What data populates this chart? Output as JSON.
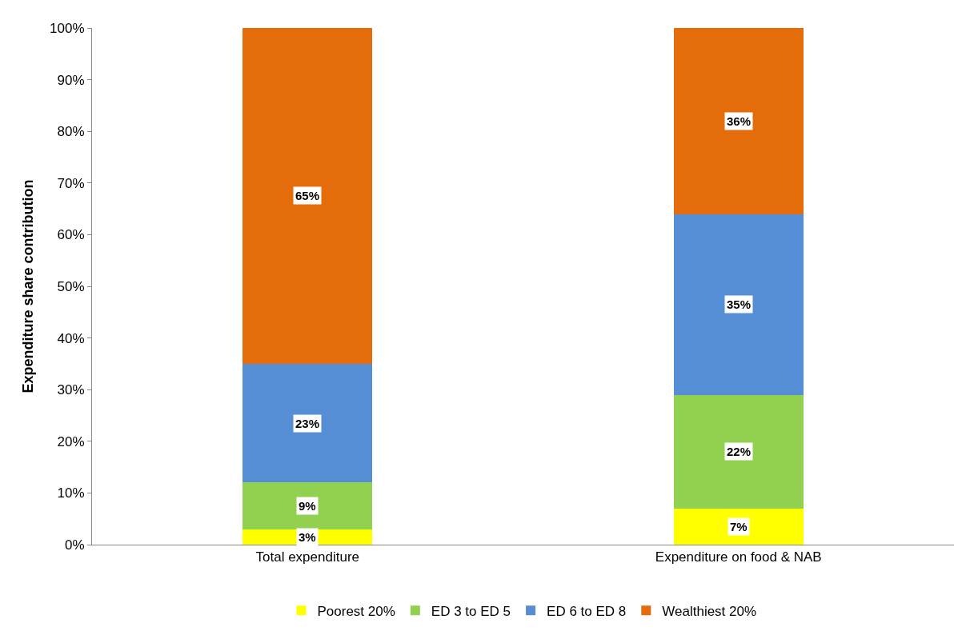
{
  "chart_data": {
    "type": "bar",
    "stacked": true,
    "ylabel": "Expenditure share contribution",
    "categories": [
      "Total expenditure",
      "Expenditure on food & NAB"
    ],
    "series": [
      {
        "name": "Poorest 20%",
        "color": "#ffff00",
        "values": [
          3,
          7
        ],
        "value_labels": [
          "3%",
          "7%"
        ]
      },
      {
        "name": "ED 3 to ED 5",
        "color": "#92d050",
        "values": [
          9,
          22
        ],
        "value_labels": [
          "9%",
          "22%"
        ]
      },
      {
        "name": "ED 6 to ED 8",
        "color": "#558ed5",
        "values": [
          23,
          35
        ],
        "value_labels": [
          "23%",
          "35%"
        ]
      },
      {
        "name": "Wealthiest 20%",
        "color": "#e46c0a",
        "values": [
          65,
          36
        ],
        "value_labels": [
          "65%",
          "36%"
        ]
      }
    ],
    "ylim": [
      0,
      100
    ],
    "yticks": [
      {
        "value": 0,
        "label": "0%"
      },
      {
        "value": 10,
        "label": "10%"
      },
      {
        "value": 20,
        "label": "20%"
      },
      {
        "value": 30,
        "label": "30%"
      },
      {
        "value": 40,
        "label": "40%"
      },
      {
        "value": 50,
        "label": "50%"
      },
      {
        "value": 60,
        "label": "60%"
      },
      {
        "value": 70,
        "label": "70%"
      },
      {
        "value": 80,
        "label": "80%"
      },
      {
        "value": 90,
        "label": "90%"
      },
      {
        "value": 100,
        "label": "100%"
      }
    ],
    "legend": "bottom"
  }
}
